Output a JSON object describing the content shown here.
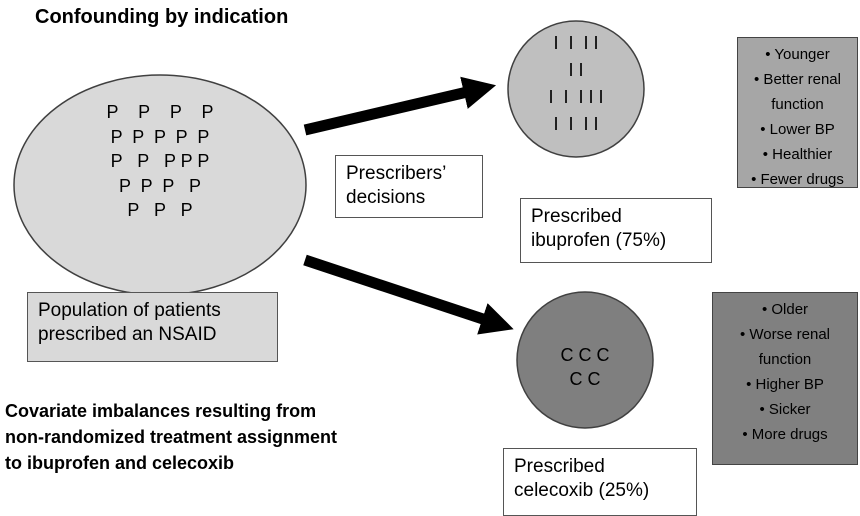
{
  "title": "Confounding by indication",
  "population": {
    "marks": [
      "P    P    P    P",
      "P  P  P  P  P",
      "P   P   P P P",
      "P  P  P   P",
      "P   P   P"
    ],
    "label": [
      "Population of patients",
      "prescribed an NSAID"
    ]
  },
  "decision": {
    "label": [
      "Prescribers’",
      "decisions"
    ]
  },
  "ibuprofen": {
    "marks": [
      "I  I  I I",
      "I I",
      "I  I  I I I",
      "I  I  I I"
    ],
    "label": [
      "Prescribed",
      "ibuprofen (75%)"
    ],
    "traits": [
      "• Younger",
      "• Better renal",
      "function",
      "• Lower BP",
      "• Healthier",
      "• Fewer drugs"
    ]
  },
  "celecoxib": {
    "marks": [
      "C C C",
      "C C"
    ],
    "label": [
      "Prescribed",
      "celecoxib (25%)"
    ],
    "traits": [
      "• Older",
      "• Worse renal",
      "function",
      "• Higher BP",
      "• Sicker",
      "• More drugs"
    ]
  },
  "caption": [
    "Covariate imbalances resulting from",
    "non-randomized treatment assignment",
    "to ibuprofen and celecoxib"
  ]
}
